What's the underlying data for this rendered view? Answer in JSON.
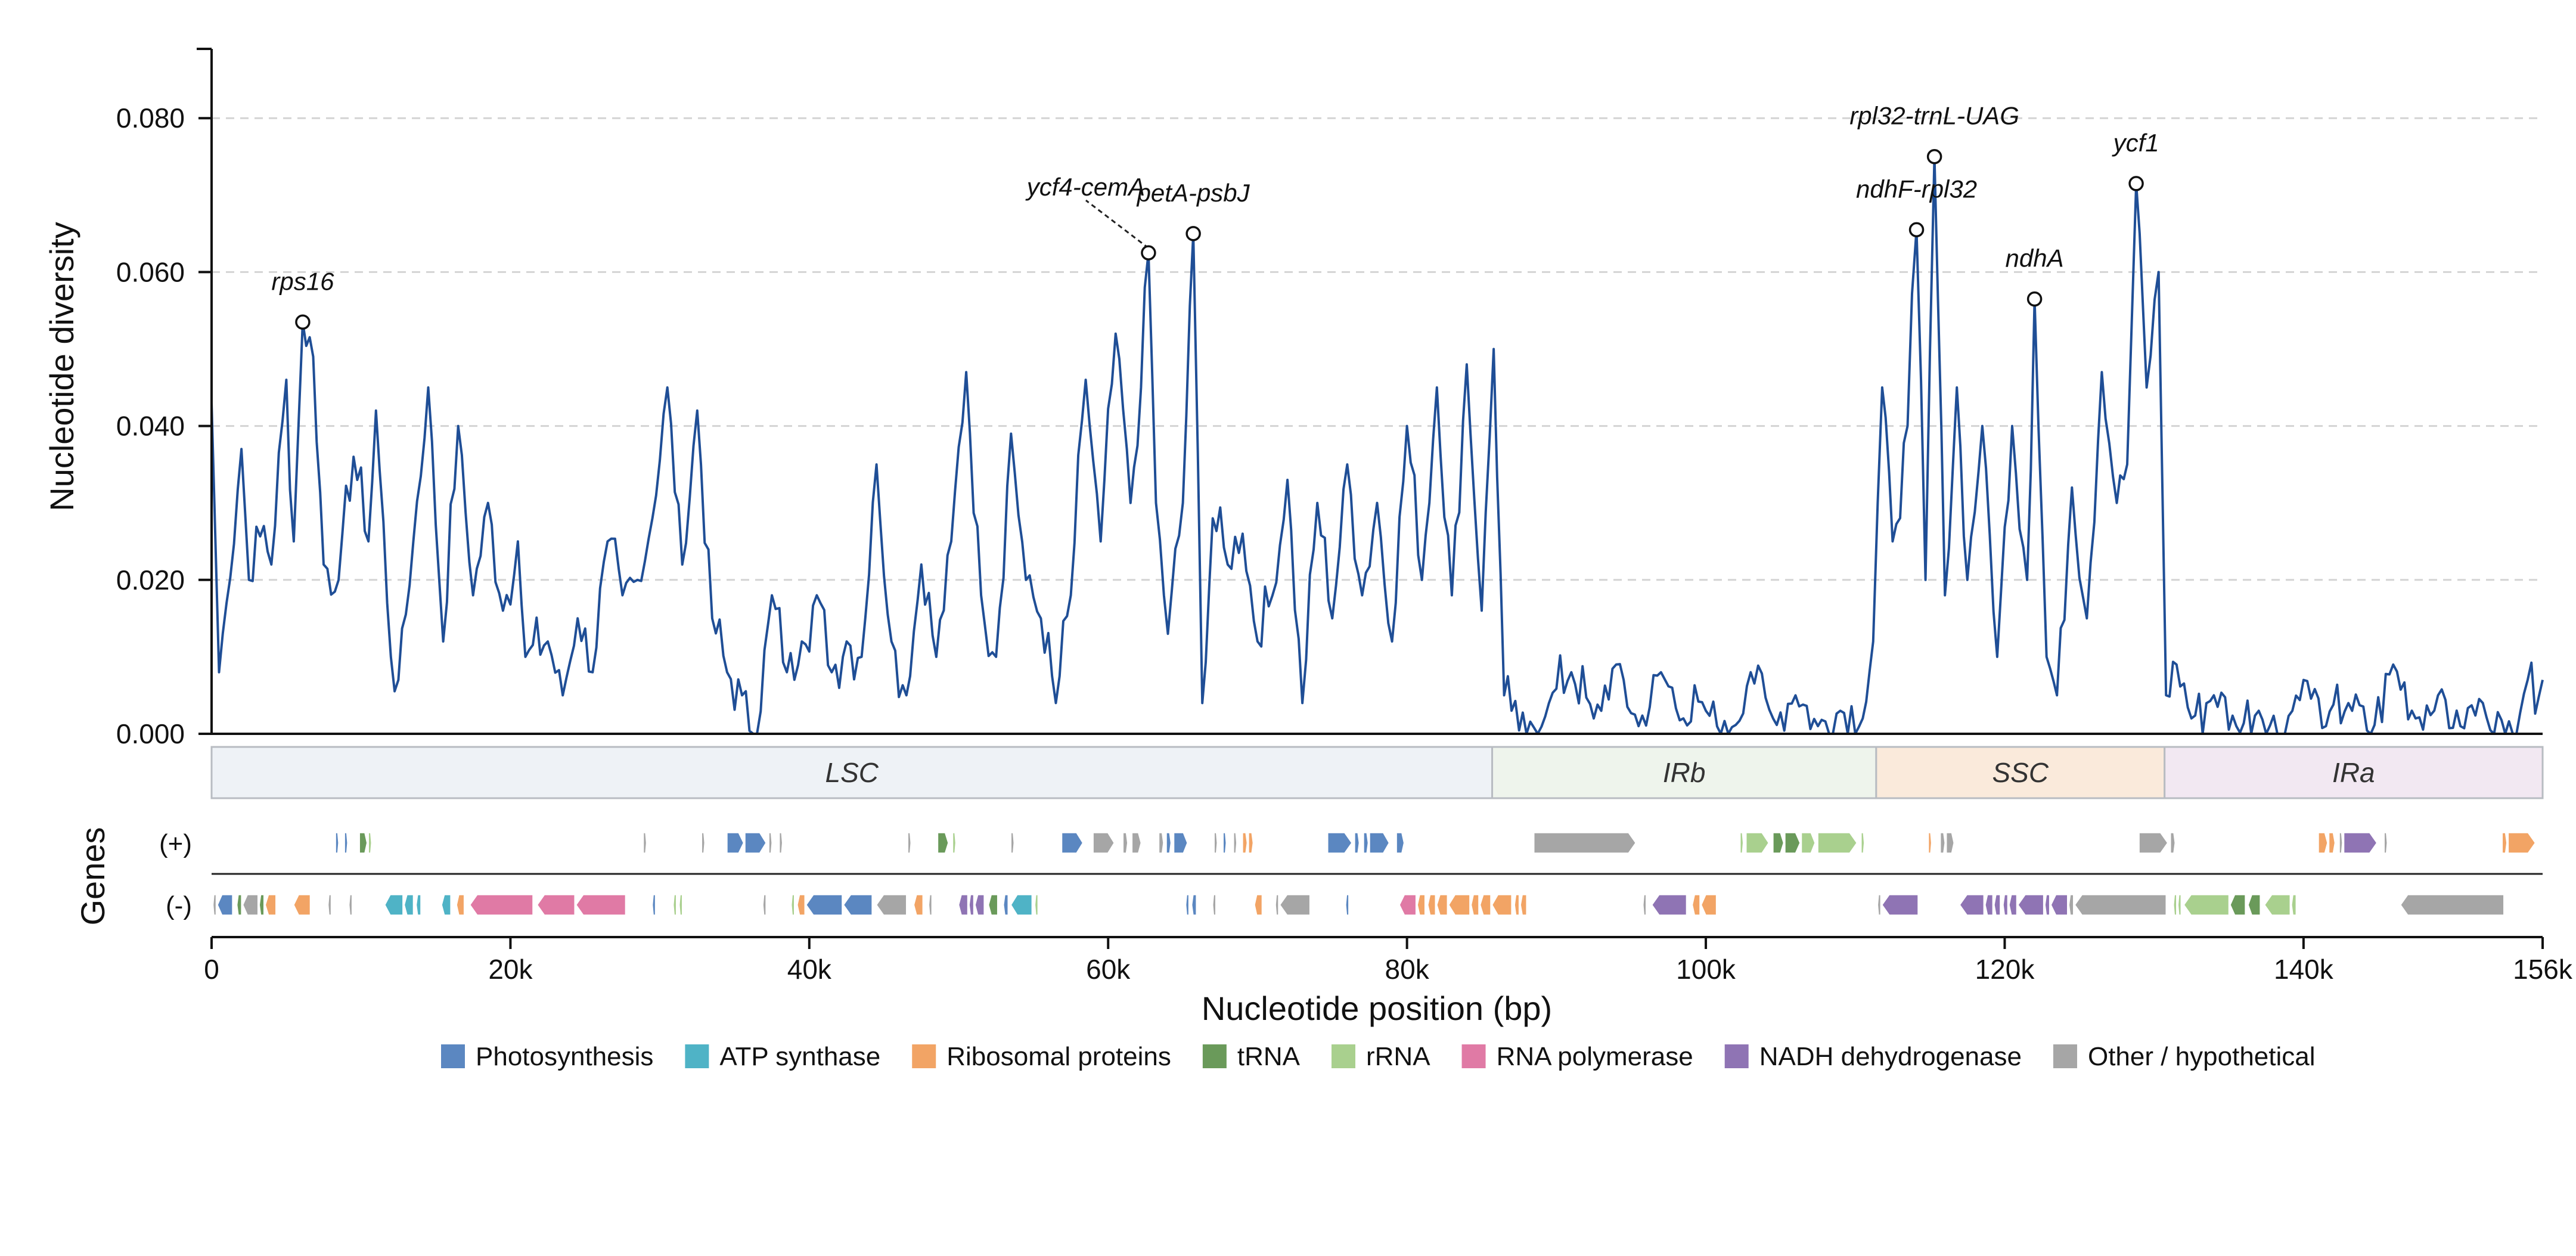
{
  "chart_data": {
    "type": "line",
    "ylabel": "Nucleotide diversity",
    "xlabel": "Nucleotide position (bp)",
    "genes_label": "Genes",
    "xlim": [
      0,
      156000
    ],
    "ylim": [
      0,
      0.089
    ],
    "x_ticks": [
      0,
      20000,
      40000,
      60000,
      80000,
      100000,
      120000,
      140000,
      156000
    ],
    "x_tick_labels": [
      "0",
      "20k",
      "40k",
      "60k",
      "80k",
      "100k",
      "120k",
      "140k",
      "156k"
    ],
    "y_ticks": [
      0,
      0.02,
      0.04,
      0.06,
      0.08
    ],
    "y_tick_labels": [
      "0.000",
      "0.020",
      "0.040",
      "0.060",
      "0.080"
    ],
    "grid": "horizontal dashed",
    "line_color": "#1f4e96",
    "anchors": [
      [
        0,
        0.043
      ],
      [
        500,
        0.008
      ],
      [
        1000,
        0.017
      ],
      [
        2000,
        0.037
      ],
      [
        2500,
        0.02
      ],
      [
        3500,
        0.027
      ],
      [
        4000,
        0.022
      ],
      [
        5000,
        0.046
      ],
      [
        5500,
        0.025
      ],
      [
        6100,
        0.0535
      ],
      [
        6800,
        0.049
      ],
      [
        7500,
        0.022
      ],
      [
        8500,
        0.02
      ],
      [
        9500,
        0.036
      ],
      [
        10500,
        0.025
      ],
      [
        11000,
        0.042
      ],
      [
        12000,
        0.01
      ],
      [
        12500,
        0.007
      ],
      [
        13500,
        0.025
      ],
      [
        14500,
        0.045
      ],
      [
        15500,
        0.012
      ],
      [
        16500,
        0.04
      ],
      [
        17500,
        0.018
      ],
      [
        18500,
        0.03
      ],
      [
        19500,
        0.016
      ],
      [
        20500,
        0.025
      ],
      [
        21000,
        0.01
      ],
      [
        22500,
        0.012
      ],
      [
        23500,
        0.005
      ],
      [
        24500,
        0.015
      ],
      [
        25500,
        0.008
      ],
      [
        26500,
        0.025
      ],
      [
        27500,
        0.018
      ],
      [
        28500,
        0.02
      ],
      [
        29500,
        0.028
      ],
      [
        30500,
        0.045
      ],
      [
        31500,
        0.022
      ],
      [
        32500,
        0.042
      ],
      [
        33500,
        0.015
      ],
      [
        34500,
        0.008
      ],
      [
        35500,
        0.005
      ],
      [
        36500,
        0.0
      ],
      [
        37500,
        0.018
      ],
      [
        38500,
        0.008
      ],
      [
        39500,
        0.012
      ],
      [
        40500,
        0.018
      ],
      [
        41500,
        0.008
      ],
      [
        42500,
        0.012
      ],
      [
        43500,
        0.01
      ],
      [
        44500,
        0.035
      ],
      [
        45500,
        0.012
      ],
      [
        46500,
        0.005
      ],
      [
        47500,
        0.022
      ],
      [
        48500,
        0.01
      ],
      [
        49500,
        0.025
      ],
      [
        50500,
        0.047
      ],
      [
        51500,
        0.018
      ],
      [
        52500,
        0.01
      ],
      [
        53500,
        0.039
      ],
      [
        54500,
        0.02
      ],
      [
        55500,
        0.015
      ],
      [
        56500,
        0.004
      ],
      [
        57500,
        0.018
      ],
      [
        58500,
        0.046
      ],
      [
        59500,
        0.025
      ],
      [
        60500,
        0.052
      ],
      [
        61500,
        0.03
      ],
      [
        62200,
        0.045
      ],
      [
        62700,
        0.0625
      ],
      [
        63200,
        0.03
      ],
      [
        64000,
        0.013
      ],
      [
        65000,
        0.03
      ],
      [
        65700,
        0.065
      ],
      [
        66300,
        0.004
      ],
      [
        67000,
        0.028
      ],
      [
        68000,
        0.022
      ],
      [
        69000,
        0.026
      ],
      [
        70000,
        0.012
      ],
      [
        71000,
        0.018
      ],
      [
        72000,
        0.033
      ],
      [
        73000,
        0.004
      ],
      [
        74000,
        0.03
      ],
      [
        75000,
        0.015
      ],
      [
        76000,
        0.035
      ],
      [
        77000,
        0.018
      ],
      [
        78000,
        0.03
      ],
      [
        79000,
        0.012
      ],
      [
        80000,
        0.04
      ],
      [
        81000,
        0.02
      ],
      [
        82000,
        0.045
      ],
      [
        83000,
        0.018
      ],
      [
        84000,
        0.048
      ],
      [
        85000,
        0.016
      ],
      [
        85800,
        0.05
      ],
      [
        86500,
        0.005
      ],
      [
        87000,
        0.003
      ],
      [
        88000,
        0.0
      ],
      [
        89500,
        0.004
      ],
      [
        91000,
        0.008
      ],
      [
        92500,
        0.002
      ],
      [
        94000,
        0.009
      ],
      [
        95500,
        0.001
      ],
      [
        97000,
        0.008
      ],
      [
        98500,
        0.002
      ],
      [
        100000,
        0.003
      ],
      [
        101500,
        0.0
      ],
      [
        103000,
        0.008
      ],
      [
        104500,
        0.002
      ],
      [
        106000,
        0.005
      ],
      [
        107500,
        0.001
      ],
      [
        109000,
        0.003
      ],
      [
        110500,
        0.002
      ],
      [
        111200,
        0.012
      ],
      [
        111800,
        0.045
      ],
      [
        112500,
        0.025
      ],
      [
        113500,
        0.04
      ],
      [
        114100,
        0.0655
      ],
      [
        114700,
        0.02
      ],
      [
        115300,
        0.075
      ],
      [
        116000,
        0.018
      ],
      [
        116800,
        0.045
      ],
      [
        117500,
        0.02
      ],
      [
        118500,
        0.04
      ],
      [
        119500,
        0.01
      ],
      [
        120500,
        0.04
      ],
      [
        121500,
        0.02
      ],
      [
        122000,
        0.0565
      ],
      [
        122800,
        0.01
      ],
      [
        123500,
        0.005
      ],
      [
        124500,
        0.032
      ],
      [
        125500,
        0.015
      ],
      [
        126500,
        0.047
      ],
      [
        127500,
        0.03
      ],
      [
        128200,
        0.035
      ],
      [
        128800,
        0.0715
      ],
      [
        129500,
        0.045
      ],
      [
        130300,
        0.06
      ],
      [
        130800,
        0.005
      ],
      [
        131500,
        0.009
      ],
      [
        132500,
        0.002
      ],
      [
        134000,
        0.005
      ],
      [
        135500,
        0.001
      ],
      [
        137000,
        0.003
      ],
      [
        138500,
        0.0
      ],
      [
        140000,
        0.007
      ],
      [
        141500,
        0.001
      ],
      [
        143000,
        0.004
      ],
      [
        144500,
        0.0
      ],
      [
        146000,
        0.009
      ],
      [
        147500,
        0.002
      ],
      [
        149000,
        0.005
      ],
      [
        150500,
        0.001
      ],
      [
        152000,
        0.004
      ],
      [
        153500,
        0.0
      ],
      [
        155000,
        0.007
      ],
      [
        156000,
        0.007
      ]
    ],
    "peaks": [
      {
        "label": "rps16",
        "x": 6100,
        "y": 0.0535,
        "position": "above"
      },
      {
        "label": "ycf4-cemA",
        "x": 62700,
        "y": 0.0625,
        "position": "upper-left-leader"
      },
      {
        "label": "petA-psbJ",
        "x": 65700,
        "y": 0.065,
        "position": "above"
      },
      {
        "label": "ndhF-rpl32",
        "x": 114100,
        "y": 0.0655,
        "position": "above"
      },
      {
        "label": "rpl32-trnL-UAG",
        "x": 115300,
        "y": 0.075,
        "position": "above"
      },
      {
        "label": "ndhA",
        "x": 122000,
        "y": 0.0565,
        "position": "above"
      },
      {
        "label": "ycf1",
        "x": 128800,
        "y": 0.0715,
        "position": "above"
      }
    ],
    "regions": [
      {
        "label": "LSC",
        "start": 0,
        "end": 85700,
        "color": "#eef2f6"
      },
      {
        "label": "IRb",
        "start": 85700,
        "end": 111400,
        "color": "#eef4ec"
      },
      {
        "label": "SSC",
        "start": 111400,
        "end": 130700,
        "color": "#faeadb"
      },
      {
        "label": "IRa",
        "start": 130700,
        "end": 156000,
        "color": "#f2e8f2"
      }
    ],
    "strands": [
      {
        "label": "(+)",
        "key": "plus"
      },
      {
        "label": "(-)",
        "key": "minus"
      }
    ],
    "legend": [
      {
        "label": "Photosynthesis",
        "key": "photo",
        "color": "#5b87c1"
      },
      {
        "label": "ATP synthase",
        "key": "atp",
        "color": "#4fb3c6"
      },
      {
        "label": "Ribosomal proteins",
        "key": "ribo",
        "color": "#f2a465"
      },
      {
        "label": "tRNA",
        "key": "trna",
        "color": "#6a9a5a"
      },
      {
        "label": "rRNA",
        "key": "rrna",
        "color": "#a9d08e"
      },
      {
        "label": "RNA polymerase",
        "key": "rpo",
        "color": "#e07aa5"
      },
      {
        "label": "NADH dehydrogenase",
        "key": "ndh",
        "color": "#8f74b4"
      },
      {
        "label": "Other / hypothetical",
        "key": "other",
        "color": "#a6a6a6"
      }
    ],
    "genes": {
      "plus": [
        [
          8300,
          8500,
          "photo"
        ],
        [
          8900,
          9100,
          "photo"
        ],
        [
          9900,
          10400,
          "trna"
        ],
        [
          10500,
          10700,
          "rrna"
        ],
        [
          28900,
          29100,
          "other"
        ],
        [
          32800,
          33000,
          "other"
        ],
        [
          34500,
          35600,
          "photo"
        ],
        [
          35700,
          37100,
          "photo"
        ],
        [
          37300,
          37500,
          "other"
        ],
        [
          38000,
          38200,
          "other"
        ],
        [
          46600,
          46800,
          "other"
        ],
        [
          48600,
          49300,
          "trna"
        ],
        [
          49600,
          49800,
          "rrna"
        ],
        [
          53500,
          53700,
          "other"
        ],
        [
          56900,
          58300,
          "photo"
        ],
        [
          59000,
          60400,
          "other"
        ],
        [
          61000,
          61300,
          "other"
        ],
        [
          61600,
          62200,
          "other"
        ],
        [
          63400,
          63700,
          "other"
        ],
        [
          63900,
          64200,
          "photo"
        ],
        [
          64400,
          65300,
          "photo"
        ],
        [
          67100,
          67300,
          "other"
        ],
        [
          67700,
          67900,
          "photo"
        ],
        [
          68400,
          68600,
          "other"
        ],
        [
          69000,
          69300,
          "ribo"
        ],
        [
          69400,
          69700,
          "ribo"
        ],
        [
          74700,
          76300,
          "photo"
        ],
        [
          76500,
          76800,
          "photo"
        ],
        [
          77100,
          77400,
          "photo"
        ],
        [
          77500,
          78800,
          "photo"
        ],
        [
          79300,
          79800,
          "photo"
        ],
        [
          88500,
          95300,
          "other"
        ],
        [
          102300,
          102500,
          "rrna"
        ],
        [
          102700,
          104200,
          "rrna"
        ],
        [
          104500,
          105200,
          "trna"
        ],
        [
          105300,
          106300,
          "trna"
        ],
        [
          106400,
          107300,
          "rrna"
        ],
        [
          107500,
          110100,
          "rrna"
        ],
        [
          110400,
          110600,
          "rrna"
        ],
        [
          114900,
          115100,
          "ribo"
        ],
        [
          115700,
          116000,
          "other"
        ],
        [
          116100,
          116600,
          "other"
        ],
        [
          129000,
          130900,
          "other"
        ],
        [
          131100,
          131400,
          "other"
        ],
        [
          141000,
          141600,
          "ribo"
        ],
        [
          141700,
          142100,
          "ribo"
        ],
        [
          142400,
          142600,
          "other"
        ],
        [
          142700,
          144900,
          "ndh"
        ],
        [
          145400,
          145600,
          "other"
        ],
        [
          153300,
          153600,
          "ribo"
        ],
        [
          153700,
          155500,
          "ribo"
        ]
      ],
      "minus": [
        [
          100,
          300,
          "other"
        ],
        [
          400,
          1400,
          "photo"
        ],
        [
          1700,
          2000,
          "trna"
        ],
        [
          2100,
          3100,
          "other"
        ],
        [
          3200,
          3500,
          "trna"
        ],
        [
          3600,
          4300,
          "ribo"
        ],
        [
          5500,
          6600,
          "ribo"
        ],
        [
          7800,
          8000,
          "other"
        ],
        [
          9200,
          9400,
          "other"
        ],
        [
          11600,
          12800,
          "atp"
        ],
        [
          12900,
          13500,
          "atp"
        ],
        [
          13700,
          14000,
          "atp"
        ],
        [
          15400,
          16000,
          "atp"
        ],
        [
          16400,
          16900,
          "ribo"
        ],
        [
          17300,
          21500,
          "rpo"
        ],
        [
          21800,
          24300,
          "rpo"
        ],
        [
          24400,
          27700,
          "rpo"
        ],
        [
          29500,
          29700,
          "photo"
        ],
        [
          30900,
          31100,
          "rrna"
        ],
        [
          31300,
          31500,
          "rrna"
        ],
        [
          36900,
          37100,
          "other"
        ],
        [
          38800,
          39000,
          "rrna"
        ],
        [
          39200,
          39700,
          "ribo"
        ],
        [
          39800,
          42200,
          "photo"
        ],
        [
          42300,
          44200,
          "photo"
        ],
        [
          44500,
          46500,
          "other"
        ],
        [
          47000,
          47600,
          "ribo"
        ],
        [
          48000,
          48200,
          "other"
        ],
        [
          50000,
          50600,
          "ndh"
        ],
        [
          50700,
          51000,
          "ndh"
        ],
        [
          51100,
          51700,
          "ndh"
        ],
        [
          52000,
          52600,
          "trna"
        ],
        [
          53000,
          53300,
          "photo"
        ],
        [
          53500,
          54900,
          "atp"
        ],
        [
          55100,
          55300,
          "rrna"
        ],
        [
          65200,
          65400,
          "photo"
        ],
        [
          65600,
          65900,
          "photo"
        ],
        [
          67000,
          67200,
          "other"
        ],
        [
          69800,
          70300,
          "ribo"
        ],
        [
          71200,
          71400,
          "other"
        ],
        [
          71500,
          73500,
          "other"
        ],
        [
          75900,
          76100,
          "photo"
        ],
        [
          79500,
          80600,
          "rpo"
        ],
        [
          80700,
          81200,
          "ribo"
        ],
        [
          81400,
          81900,
          "ribo"
        ],
        [
          82000,
          82700,
          "ribo"
        ],
        [
          82800,
          84200,
          "ribo"
        ],
        [
          84300,
          84800,
          "ribo"
        ],
        [
          84900,
          85600,
          "ribo"
        ],
        [
          85700,
          87000,
          "ribo"
        ],
        [
          87200,
          87500,
          "ribo"
        ],
        [
          87600,
          88000,
          "ribo"
        ],
        [
          95800,
          96000,
          "other"
        ],
        [
          96400,
          98700,
          "ndh"
        ],
        [
          99100,
          99600,
          "ribo"
        ],
        [
          99700,
          100700,
          "ribo"
        ],
        [
          111500,
          111700,
          "other"
        ],
        [
          111800,
          114200,
          "ndh"
        ],
        [
          117000,
          118600,
          "ndh"
        ],
        [
          118700,
          119200,
          "ndh"
        ],
        [
          119300,
          119700,
          "ndh"
        ],
        [
          119900,
          120200,
          "ndh"
        ],
        [
          120300,
          120800,
          "ndh"
        ],
        [
          120900,
          122600,
          "ndh"
        ],
        [
          122700,
          123000,
          "ndh"
        ],
        [
          123100,
          124200,
          "ndh"
        ],
        [
          124300,
          124600,
          "other"
        ],
        [
          124700,
          130800,
          "other"
        ],
        [
          131300,
          131500,
          "rrna"
        ],
        [
          131600,
          131800,
          "rrna"
        ],
        [
          132000,
          135000,
          "rrna"
        ],
        [
          135100,
          136100,
          "trna"
        ],
        [
          136300,
          137100,
          "trna"
        ],
        [
          137400,
          139100,
          "rrna"
        ],
        [
          139200,
          139500,
          "rrna"
        ],
        [
          146500,
          153400,
          "other"
        ]
      ]
    }
  }
}
